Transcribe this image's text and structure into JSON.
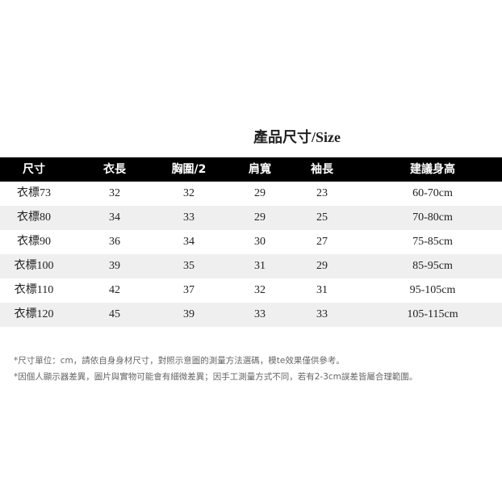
{
  "title": "產品尺寸/Size",
  "table": {
    "headers": [
      "尺寸",
      "衣長",
      "胸圍/2",
      "肩寬",
      "袖長",
      "建議身高"
    ],
    "rows": [
      [
        "衣標73",
        "32",
        "32",
        "29",
        "23",
        "60-70cm"
      ],
      [
        "衣標80",
        "34",
        "33",
        "29",
        "25",
        "70-80cm"
      ],
      [
        "衣標90",
        "36",
        "34",
        "30",
        "27",
        "75-85cm"
      ],
      [
        "衣標100",
        "39",
        "35",
        "31",
        "29",
        "85-95cm"
      ],
      [
        "衣標110",
        "42",
        "37",
        "32",
        "31",
        "95-105cm"
      ],
      [
        "衣標120",
        "45",
        "39",
        "33",
        "33",
        "105-115cm"
      ]
    ]
  },
  "notes": [
    "*尺寸單位：cm，請依自身身材尺寸，對照示意圖的測量方法選碼，模te效果僅供參考。",
    "*因個人顯示器差異，圖片與實物可能會有細微差異；因手工測量方式不同，若有2-3cm誤差皆屬合理範圍。"
  ],
  "colors": {
    "header_bg": "#000000",
    "header_text": "#ffffff",
    "alt_row_bg": "#efefef",
    "note_text": "#666666"
  }
}
